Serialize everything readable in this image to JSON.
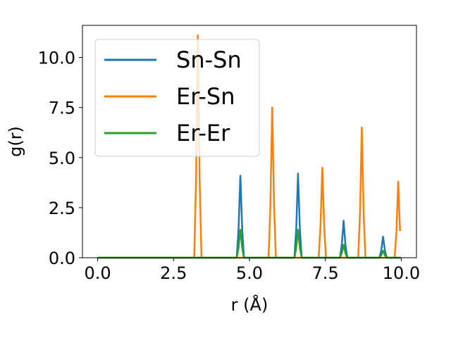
{
  "chart_data": {
    "type": "line",
    "title": "",
    "xlabel": "r (Å)",
    "ylabel": "g(r)",
    "xlim": [
      -0.5,
      10.5
    ],
    "ylim": [
      0,
      11.6
    ],
    "xticks": [
      0.0,
      2.5,
      5.0,
      7.5,
      10.0
    ],
    "xtick_labels": [
      "0.0",
      "2.5",
      "5.0",
      "7.5",
      "10.0"
    ],
    "yticks": [
      0.0,
      2.5,
      5.0,
      7.5,
      10.0
    ],
    "ytick_labels": [
      "0.0",
      "2.5",
      "5.0",
      "7.5",
      "10.0"
    ],
    "grid": false,
    "legend_position": "top-left",
    "series": [
      {
        "name": "Sn-Sn",
        "color": "#1f77b4",
        "peaks": [
          [
            4.7,
            4.1
          ],
          [
            6.6,
            4.2
          ],
          [
            8.1,
            1.85
          ],
          [
            9.4,
            1.05
          ]
        ]
      },
      {
        "name": "Er-Sn",
        "color": "#ff7f0e",
        "peaks": [
          [
            3.3,
            11.1
          ],
          [
            5.75,
            7.5
          ],
          [
            7.4,
            4.5
          ],
          [
            8.7,
            6.5
          ],
          [
            9.9,
            3.8
          ]
        ]
      },
      {
        "name": "Er-Er",
        "color": "#2ca02c",
        "peaks": [
          [
            4.7,
            1.4
          ],
          [
            6.6,
            1.4
          ],
          [
            8.1,
            0.65
          ],
          [
            9.4,
            0.35
          ]
        ]
      }
    ]
  }
}
